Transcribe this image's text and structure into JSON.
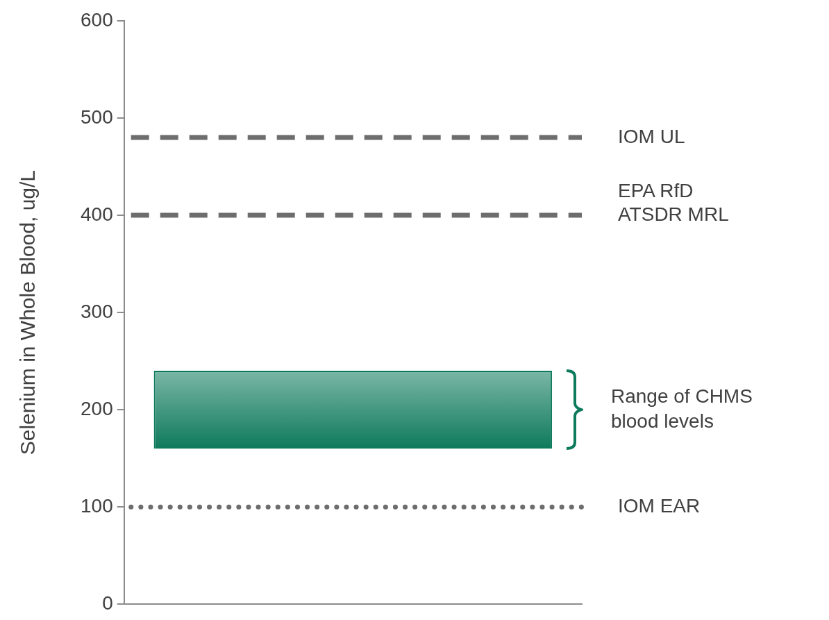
{
  "chart_data": {
    "type": "bar",
    "ylabel": "Selenium in Whole Blood, ug/L",
    "categories": [
      null
    ],
    "values": [
      80
    ],
    "base": [
      160
    ],
    "color": "#0e7a5c",
    "ylim": [
      0,
      600
    ],
    "yticks": [
      0,
      100,
      200,
      300,
      400,
      500,
      600
    ],
    "grid": false,
    "tick_labels": "y",
    "ref_lines": [
      {
        "axis": "y",
        "value": 480,
        "label": "IOM UL",
        "color": "#6d6d6d",
        "line_style": "dashed"
      },
      {
        "axis": "y",
        "value": 400,
        "label": "EPA RfD\nATSDR MRL",
        "color": "#6d6d6d",
        "line_style": "dashed"
      },
      {
        "axis": "y",
        "value": 100,
        "label": "IOM EAR",
        "color": "#6d6d6d",
        "line_style": "dotted"
      }
    ],
    "annotations": [
      "Range of CHMS blood levels"
    ]
  }
}
